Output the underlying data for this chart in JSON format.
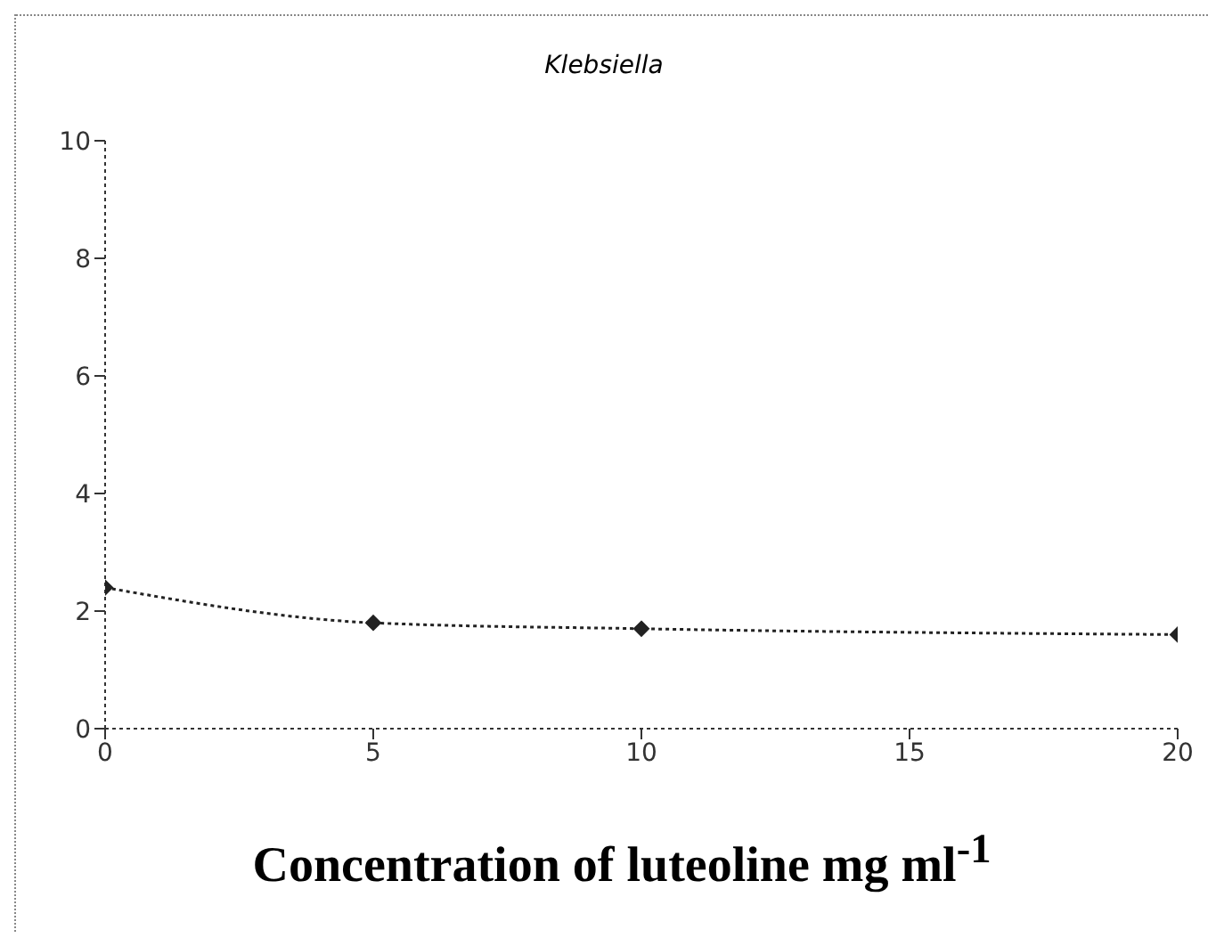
{
  "chart_data": {
    "type": "line",
    "title": "Klebsiella",
    "xlabel": "Concentration of luteoline mg ml$^{-1}$",
    "x": [
      0,
      5,
      10,
      20
    ],
    "series": [
      {
        "color": "#222222",
        "values": [
          2.4,
          1.8,
          1.7,
          1.6
        ]
      }
    ],
    "xlim": [
      0,
      20
    ],
    "xticks": [
      0,
      5,
      10,
      15,
      20
    ],
    "ylim": [
      0,
      10
    ],
    "yticks": [
      0,
      2,
      4,
      6,
      8,
      10
    ],
    "grid": false,
    "marker": "diamond",
    "line_style": "dotted"
  }
}
